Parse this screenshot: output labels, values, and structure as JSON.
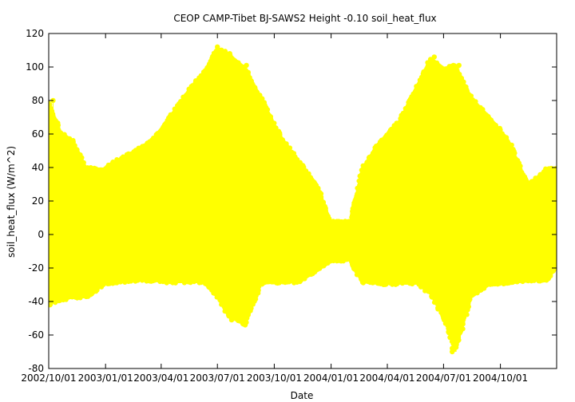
{
  "chart_data": {
    "type": "scatter",
    "title": "CEOP CAMP-Tibet BJ-SAWS2 Height -0.10 soil_heat_flux",
    "xlabel": "Date",
    "ylabel": "soil_heat_flux (W/m^2)",
    "xlim": [
      "2002-10-01",
      "2004-12-31"
    ],
    "ylim": [
      -80,
      120
    ],
    "yticks": [
      -80,
      -60,
      -40,
      -20,
      0,
      20,
      40,
      60,
      80,
      100,
      120
    ],
    "xticks": [
      "2002/10/01",
      "2003/01/01",
      "2003/04/01",
      "2003/07/01",
      "2003/10/01",
      "2004/01/01",
      "2004/04/01",
      "2004/07/01",
      "2004/10/01"
    ],
    "grid": false,
    "legend": "none",
    "series": [
      {
        "color": "#ffff00",
        "marker": "circle",
        "connected": true,
        "envelope": [
          {
            "date": "2002-10-01",
            "max": 80,
            "min": -42
          },
          {
            "date": "2002-10-20",
            "max": 62,
            "min": -40
          },
          {
            "date": "2002-11-10",
            "max": 56,
            "min": -38
          },
          {
            "date": "2002-12-01",
            "max": 40,
            "min": -38
          },
          {
            "date": "2002-12-31",
            "max": 40,
            "min": -30
          },
          {
            "date": "2003-01-20",
            "max": 45,
            "min": -29
          },
          {
            "date": "2003-02-15",
            "max": 50,
            "min": -28
          },
          {
            "date": "2003-03-15",
            "max": 56,
            "min": -28
          },
          {
            "date": "2003-04-10",
            "max": 68,
            "min": -29
          },
          {
            "date": "2003-05-10",
            "max": 84,
            "min": -29
          },
          {
            "date": "2003-06-10",
            "max": 98,
            "min": -29
          },
          {
            "date": "2003-07-01",
            "max": 112,
            "min": -38
          },
          {
            "date": "2003-07-20",
            "max": 108,
            "min": -50
          },
          {
            "date": "2003-08-15",
            "max": 100,
            "min": -54
          },
          {
            "date": "2003-09-10",
            "max": 82,
            "min": -30
          },
          {
            "date": "2003-10-10",
            "max": 60,
            "min": -29
          },
          {
            "date": "2003-11-10",
            "max": 44,
            "min": -29
          },
          {
            "date": "2003-12-10",
            "max": 30,
            "min": -22
          },
          {
            "date": "2003-12-31",
            "max": 8,
            "min": -16
          },
          {
            "date": "2004-02-01",
            "max": 8,
            "min": -16
          },
          {
            "date": "2004-02-20",
            "max": 40,
            "min": -29
          },
          {
            "date": "2004-03-20",
            "max": 56,
            "min": -30
          },
          {
            "date": "2004-04-20",
            "max": 68,
            "min": -30
          },
          {
            "date": "2004-05-20",
            "max": 90,
            "min": -30
          },
          {
            "date": "2004-06-10",
            "max": 106,
            "min": -36
          },
          {
            "date": "2004-07-01",
            "max": 100,
            "min": -50
          },
          {
            "date": "2004-07-20",
            "max": 101,
            "min": -70
          },
          {
            "date": "2004-08-15",
            "max": 82,
            "min": -38
          },
          {
            "date": "2004-09-15",
            "max": 70,
            "min": -30
          },
          {
            "date": "2004-10-15",
            "max": 56,
            "min": -30
          },
          {
            "date": "2004-11-15",
            "max": 30,
            "min": -28
          },
          {
            "date": "2004-12-15",
            "max": 40,
            "min": -28
          },
          {
            "date": "2004-12-31",
            "max": 40,
            "min": -20
          }
        ],
        "outliers": [
          {
            "date": "2003-07-01",
            "y": 112
          },
          {
            "date": "2003-07-21",
            "y": 108
          },
          {
            "date": "2003-08-17",
            "y": 101
          },
          {
            "date": "2003-07-24",
            "y": -51
          },
          {
            "date": "2003-08-15",
            "y": -54
          },
          {
            "date": "2004-06-16",
            "y": 106
          },
          {
            "date": "2004-07-17",
            "y": 101
          },
          {
            "date": "2004-07-26",
            "y": 101
          },
          {
            "date": "2004-07-15",
            "y": -68
          },
          {
            "date": "2004-07-15",
            "y": -70
          },
          {
            "date": "2004-07-01",
            "y": -50
          },
          {
            "date": "2004-07-08",
            "y": -50
          },
          {
            "date": "2002-10-03",
            "y": -42
          },
          {
            "date": "2002-10-08",
            "y": 80
          }
        ]
      }
    ]
  }
}
